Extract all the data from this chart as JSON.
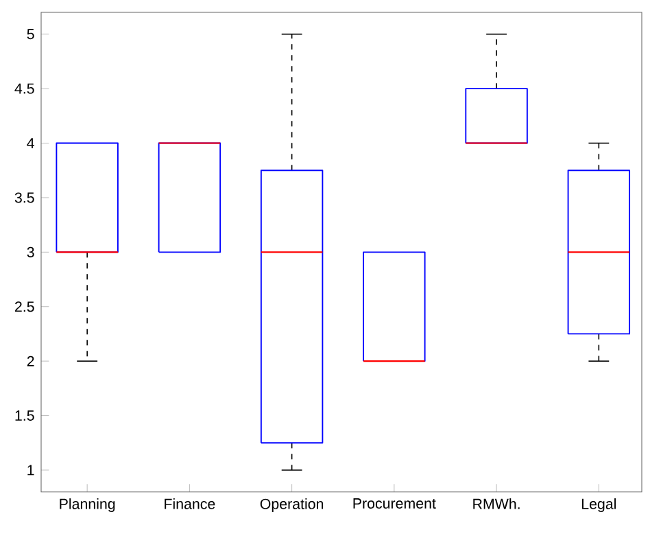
{
  "chart_data": {
    "type": "box",
    "categories": [
      "Planning",
      "Finance",
      "Operation",
      "Procurement",
      "RMWh.",
      "Legal"
    ],
    "boxes": [
      {
        "low": 2,
        "q1": 3,
        "median": 3,
        "q3": 4,
        "high": 4
      },
      {
        "low": 3,
        "q1": 3,
        "median": 4,
        "q3": 4,
        "high": 4
      },
      {
        "low": 1,
        "q1": 1.25,
        "median": 3,
        "q3": 3.75,
        "high": 5
      },
      {
        "low": 2,
        "q1": 2,
        "median": 2,
        "q3": 3,
        "high": 3
      },
      {
        "low": 4,
        "q1": 4,
        "median": 4,
        "q3": 4.5,
        "high": 5
      },
      {
        "low": 2,
        "q1": 2.25,
        "median": 3,
        "q3": 3.75,
        "high": 4
      }
    ],
    "color": "#0000ff",
    "ylim": [
      0.8,
      5.2
    ],
    "yticks": [
      1,
      1.5,
      2,
      2.5,
      3,
      3.5,
      4,
      4.5,
      5
    ],
    "grid": false
  }
}
